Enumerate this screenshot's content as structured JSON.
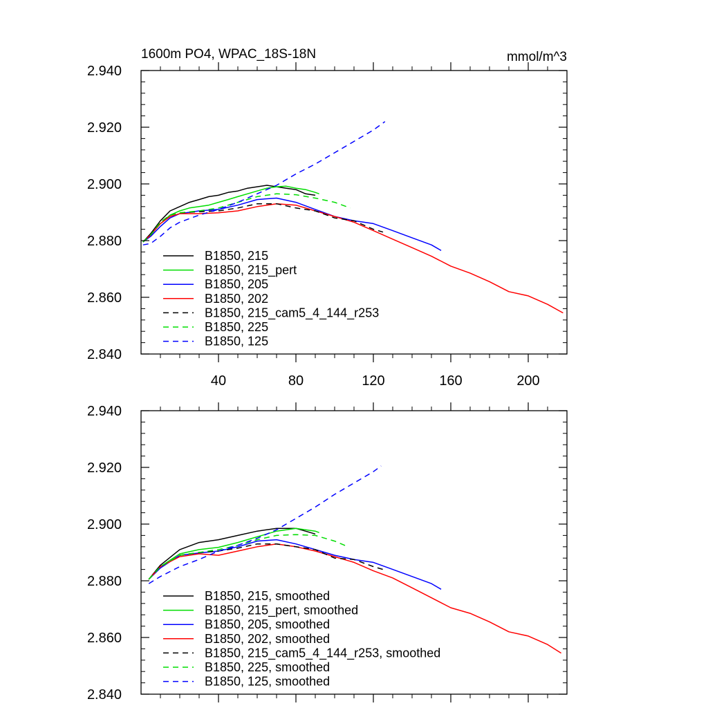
{
  "chart_data": [
    {
      "type": "line",
      "title_left": "1600m PO4, WPAC_18S-18N",
      "title_right": "mmol/m^3",
      "xlabel": "",
      "ylabel": "",
      "xlim": [
        0,
        220
      ],
      "ylim": [
        2.84,
        2.94
      ],
      "xticks": [
        40,
        80,
        120,
        160,
        200
      ],
      "xtick_labels": [
        "40",
        "80",
        "120",
        "160",
        "200"
      ],
      "yticks": [
        2.84,
        2.86,
        2.88,
        2.9,
        2.92,
        2.94
      ],
      "ytick_labels": [
        "2.840",
        "2.860",
        "2.880",
        "2.900",
        "2.920",
        "2.940"
      ],
      "show_xtick_labels": true,
      "legend_position": "lower-left",
      "series": [
        {
          "name": "B1850, 215",
          "color": "#000000",
          "dash": "solid",
          "x": [
            1,
            5,
            10,
            15,
            20,
            25,
            30,
            35,
            40,
            45,
            50,
            55,
            60,
            65,
            70,
            75,
            80,
            85,
            90
          ],
          "y": [
            2.8795,
            2.8825,
            2.887,
            2.8905,
            2.892,
            2.8935,
            2.8945,
            2.8955,
            2.896,
            2.897,
            2.8975,
            2.8985,
            2.899,
            2.8995,
            2.899,
            2.8985,
            2.898,
            2.8965,
            2.896
          ]
        },
        {
          "name": "B1850, 215_pert",
          "color": "#00dd00",
          "dash": "solid",
          "x": [
            1,
            5,
            10,
            15,
            20,
            25,
            30,
            35,
            40,
            45,
            50,
            55,
            60,
            65,
            70,
            75,
            80,
            85,
            90,
            92
          ],
          "y": [
            2.8795,
            2.882,
            2.886,
            2.889,
            2.8905,
            2.8915,
            2.892,
            2.8925,
            2.8935,
            2.8945,
            2.8955,
            2.8965,
            2.8975,
            2.8985,
            2.899,
            2.8992,
            2.8985,
            2.898,
            2.897,
            2.8965
          ]
        },
        {
          "name": "B1850, 205",
          "color": "#0000ff",
          "dash": "solid",
          "x": [
            1,
            5,
            10,
            15,
            20,
            30,
            40,
            50,
            60,
            70,
            80,
            90,
            100,
            110,
            120,
            130,
            140,
            150,
            155
          ],
          "y": [
            2.8795,
            2.8815,
            2.885,
            2.888,
            2.8895,
            2.8905,
            2.891,
            2.8925,
            2.8945,
            2.895,
            2.8935,
            2.891,
            2.8885,
            2.887,
            2.886,
            2.8835,
            2.881,
            2.8785,
            2.8765
          ]
        },
        {
          "name": "B1850, 202",
          "color": "#ff0000",
          "dash": "solid",
          "x": [
            1,
            5,
            10,
            15,
            20,
            30,
            40,
            50,
            60,
            70,
            80,
            90,
            100,
            110,
            120,
            130,
            140,
            150,
            160,
            170,
            180,
            190,
            200,
            210,
            218
          ],
          "y": [
            2.8795,
            2.882,
            2.886,
            2.8885,
            2.8895,
            2.8895,
            2.8898,
            2.8905,
            2.892,
            2.893,
            2.8925,
            2.8905,
            2.8885,
            2.8865,
            2.8835,
            2.8805,
            2.8775,
            2.8745,
            2.871,
            2.8685,
            2.8655,
            2.862,
            2.8605,
            2.8575,
            2.8545
          ]
        },
        {
          "name": "B1850, 215_cam5_4_144_r253",
          "color": "#000000",
          "dash": "8,6",
          "x": [
            1,
            5,
            10,
            15,
            20,
            30,
            40,
            50,
            60,
            70,
            80,
            90,
            100,
            110,
            120,
            125
          ],
          "y": [
            2.8795,
            2.882,
            2.8865,
            2.889,
            2.8898,
            2.8902,
            2.8905,
            2.8915,
            2.893,
            2.893,
            2.8915,
            2.8905,
            2.888,
            2.887,
            2.884,
            2.883
          ]
        },
        {
          "name": "B1850, 225",
          "color": "#00dd00",
          "dash": "8,6",
          "x": [
            1,
            5,
            10,
            15,
            20,
            30,
            40,
            50,
            60,
            70,
            80,
            90,
            100,
            108
          ],
          "y": [
            2.8795,
            2.882,
            2.8865,
            2.889,
            2.8898,
            2.8905,
            2.8915,
            2.8935,
            2.8955,
            2.8965,
            2.8962,
            2.895,
            2.8935,
            2.8915
          ]
        },
        {
          "name": "B1850, 125",
          "color": "#0000ff",
          "dash": "8,6",
          "x": [
            1,
            5,
            10,
            15,
            20,
            30,
            40,
            50,
            60,
            70,
            80,
            90,
            100,
            110,
            120,
            126
          ],
          "y": [
            2.8785,
            2.879,
            2.8815,
            2.8845,
            2.8865,
            2.889,
            2.891,
            2.8935,
            2.8965,
            2.8995,
            2.9035,
            2.907,
            2.911,
            2.915,
            2.919,
            2.922
          ]
        }
      ]
    },
    {
      "type": "line",
      "title_left": "",
      "title_right": "",
      "xlabel": "",
      "ylabel": "",
      "xlim": [
        0,
        220
      ],
      "ylim": [
        2.84,
        2.94
      ],
      "xticks": [
        40,
        80,
        120,
        160,
        200
      ],
      "xtick_labels": [
        "",
        "",
        "",
        "",
        ""
      ],
      "yticks": [
        2.84,
        2.86,
        2.88,
        2.9,
        2.92,
        2.94
      ],
      "ytick_labels": [
        "2.840",
        "2.860",
        "2.880",
        "2.900",
        "2.920",
        "2.940"
      ],
      "show_xtick_labels": false,
      "legend_position": "lower-left",
      "series": [
        {
          "name": "B1850, 215, smoothed",
          "color": "#000000",
          "dash": "solid",
          "x": [
            4,
            10,
            20,
            30,
            40,
            50,
            60,
            70,
            80,
            90
          ],
          "y": [
            2.8805,
            2.8855,
            2.891,
            2.8935,
            2.8945,
            2.896,
            2.8975,
            2.8985,
            2.8985,
            2.8965
          ]
        },
        {
          "name": "B1850, 215_pert, smoothed",
          "color": "#00dd00",
          "dash": "solid",
          "x": [
            4,
            10,
            20,
            30,
            40,
            50,
            60,
            70,
            80,
            90,
            92
          ],
          "y": [
            2.8805,
            2.885,
            2.8895,
            2.891,
            2.8918,
            2.8935,
            2.8955,
            2.8975,
            2.8985,
            2.8975,
            2.897
          ]
        },
        {
          "name": "B1850, 205, smoothed",
          "color": "#0000ff",
          "dash": "solid",
          "x": [
            4,
            10,
            20,
            30,
            40,
            50,
            60,
            70,
            80,
            90,
            100,
            110,
            120,
            130,
            140,
            150,
            155
          ],
          "y": [
            2.8805,
            2.8845,
            2.889,
            2.8898,
            2.8905,
            2.892,
            2.894,
            2.8945,
            2.893,
            2.891,
            2.889,
            2.8875,
            2.8865,
            2.884,
            2.8815,
            2.879,
            2.877
          ]
        },
        {
          "name": "B1850, 202, smoothed",
          "color": "#ff0000",
          "dash": "solid",
          "x": [
            4,
            10,
            20,
            30,
            40,
            50,
            60,
            70,
            80,
            90,
            100,
            110,
            120,
            130,
            140,
            150,
            160,
            170,
            180,
            190,
            200,
            210,
            217
          ],
          "y": [
            2.8805,
            2.885,
            2.8885,
            2.8895,
            2.889,
            2.8905,
            2.892,
            2.893,
            2.892,
            2.8905,
            2.8885,
            2.8865,
            2.8835,
            2.881,
            2.8775,
            2.874,
            2.8705,
            2.8685,
            2.8655,
            2.862,
            2.8605,
            2.8575,
            2.8545
          ]
        },
        {
          "name": "B1850, 215_cam5_4_144_r253, smoothed",
          "color": "#000000",
          "dash": "8,6",
          "x": [
            4,
            10,
            20,
            30,
            40,
            50,
            60,
            70,
            80,
            90,
            100,
            110,
            120,
            125
          ],
          "y": [
            2.8805,
            2.885,
            2.889,
            2.89,
            2.8905,
            2.8915,
            2.893,
            2.893,
            2.892,
            2.891,
            2.888,
            2.8875,
            2.885,
            2.884
          ]
        },
        {
          "name": "B1850, 225, smoothed",
          "color": "#00dd00",
          "dash": "8,6",
          "x": [
            4,
            10,
            20,
            30,
            40,
            50,
            60,
            70,
            80,
            90,
            100,
            107
          ],
          "y": [
            2.8805,
            2.885,
            2.889,
            2.89,
            2.891,
            2.8925,
            2.8945,
            2.896,
            2.8963,
            2.896,
            2.894,
            2.892
          ]
        },
        {
          "name": "B1850, 125, smoothed",
          "color": "#0000ff",
          "dash": "8,6",
          "x": [
            4,
            10,
            20,
            30,
            40,
            50,
            60,
            70,
            80,
            90,
            100,
            110,
            120,
            124
          ],
          "y": [
            2.879,
            2.8815,
            2.885,
            2.8875,
            2.8905,
            2.8925,
            2.895,
            2.898,
            2.902,
            2.906,
            2.9105,
            2.9145,
            2.9185,
            2.9205
          ]
        }
      ]
    }
  ]
}
